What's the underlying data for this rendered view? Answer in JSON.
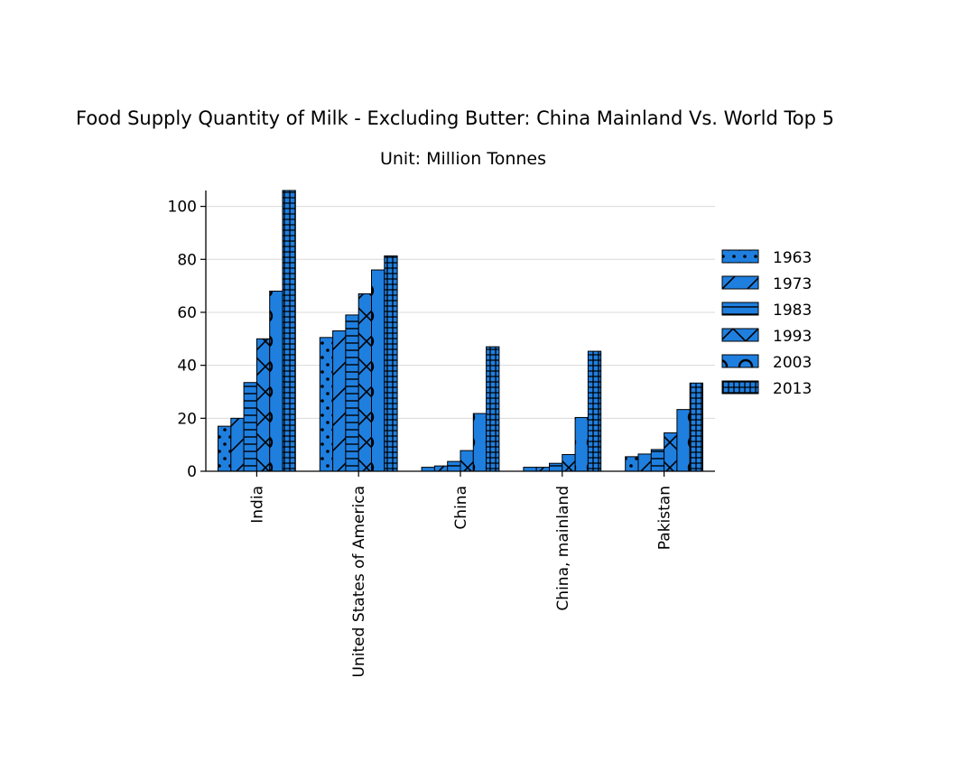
{
  "chart_data": {
    "type": "bar",
    "title": "Food Supply Quantity of Milk - Excluding Butter: China Mainland Vs. World Top 5",
    "subtitle": "Unit: Million Tonnes",
    "xlabel": "",
    "ylabel": "",
    "categories": [
      "India",
      "United States of America",
      "China",
      "China, mainland",
      "Pakistan"
    ],
    "series": [
      {
        "name": "1963",
        "values": [
          17.0,
          50.5,
          1.5,
          1.5,
          5.5
        ]
      },
      {
        "name": "1973",
        "values": [
          20.0,
          53.0,
          2.0,
          1.5,
          6.5
        ]
      },
      {
        "name": "1983",
        "values": [
          33.5,
          59.0,
          3.7,
          3.0,
          8.2
        ]
      },
      {
        "name": "1993",
        "values": [
          50.0,
          67.0,
          7.8,
          6.3,
          14.5
        ]
      },
      {
        "name": "2003",
        "values": [
          68.0,
          76.0,
          21.8,
          20.3,
          23.3
        ]
      },
      {
        "name": "2013",
        "values": [
          106.0,
          81.3,
          47.0,
          45.3,
          33.3
        ]
      }
    ],
    "ylim": [
      0,
      106
    ],
    "yticks": [
      0,
      20,
      40,
      60,
      80,
      100
    ],
    "grid": true,
    "legend_position": "right",
    "bar_color": "#1f7fdf",
    "edge_color": "#000000",
    "hatches": [
      "dots",
      "diagonal",
      "horizontal",
      "cross",
      "circles",
      "grid"
    ]
  }
}
